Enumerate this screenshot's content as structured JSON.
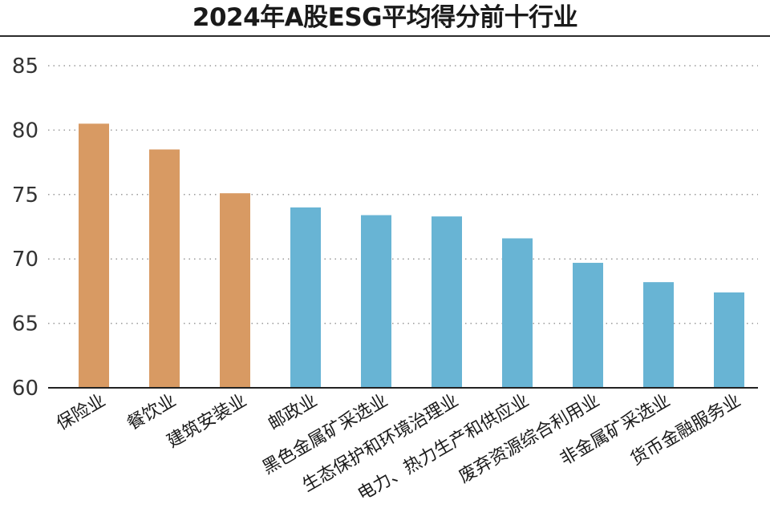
{
  "chart_data": {
    "type": "bar",
    "title": "2024年A股ESG平均得分前十行业",
    "xlabel": "",
    "ylabel": "",
    "ylim": [
      60,
      85
    ],
    "yticks": [
      60,
      65,
      70,
      75,
      80,
      85
    ],
    "grid": true,
    "categories": [
      "保险业",
      "餐饮业",
      "建筑安装业",
      "邮政业",
      "黑色金属矿采选业",
      "生态保护和环境治理业",
      "电力、热力生产和供应业",
      "废弃资源综合利用业",
      "非金属矿采选业",
      "货币金融服务业"
    ],
    "values": [
      80.5,
      78.5,
      75.1,
      74.0,
      73.4,
      73.3,
      71.6,
      69.7,
      68.2,
      67.4
    ],
    "colors": [
      "#d89a63",
      "#d89a63",
      "#d89a63",
      "#68b4d4",
      "#68b4d4",
      "#68b4d4",
      "#68b4d4",
      "#68b4d4",
      "#68b4d4",
      "#68b4d4"
    ]
  }
}
